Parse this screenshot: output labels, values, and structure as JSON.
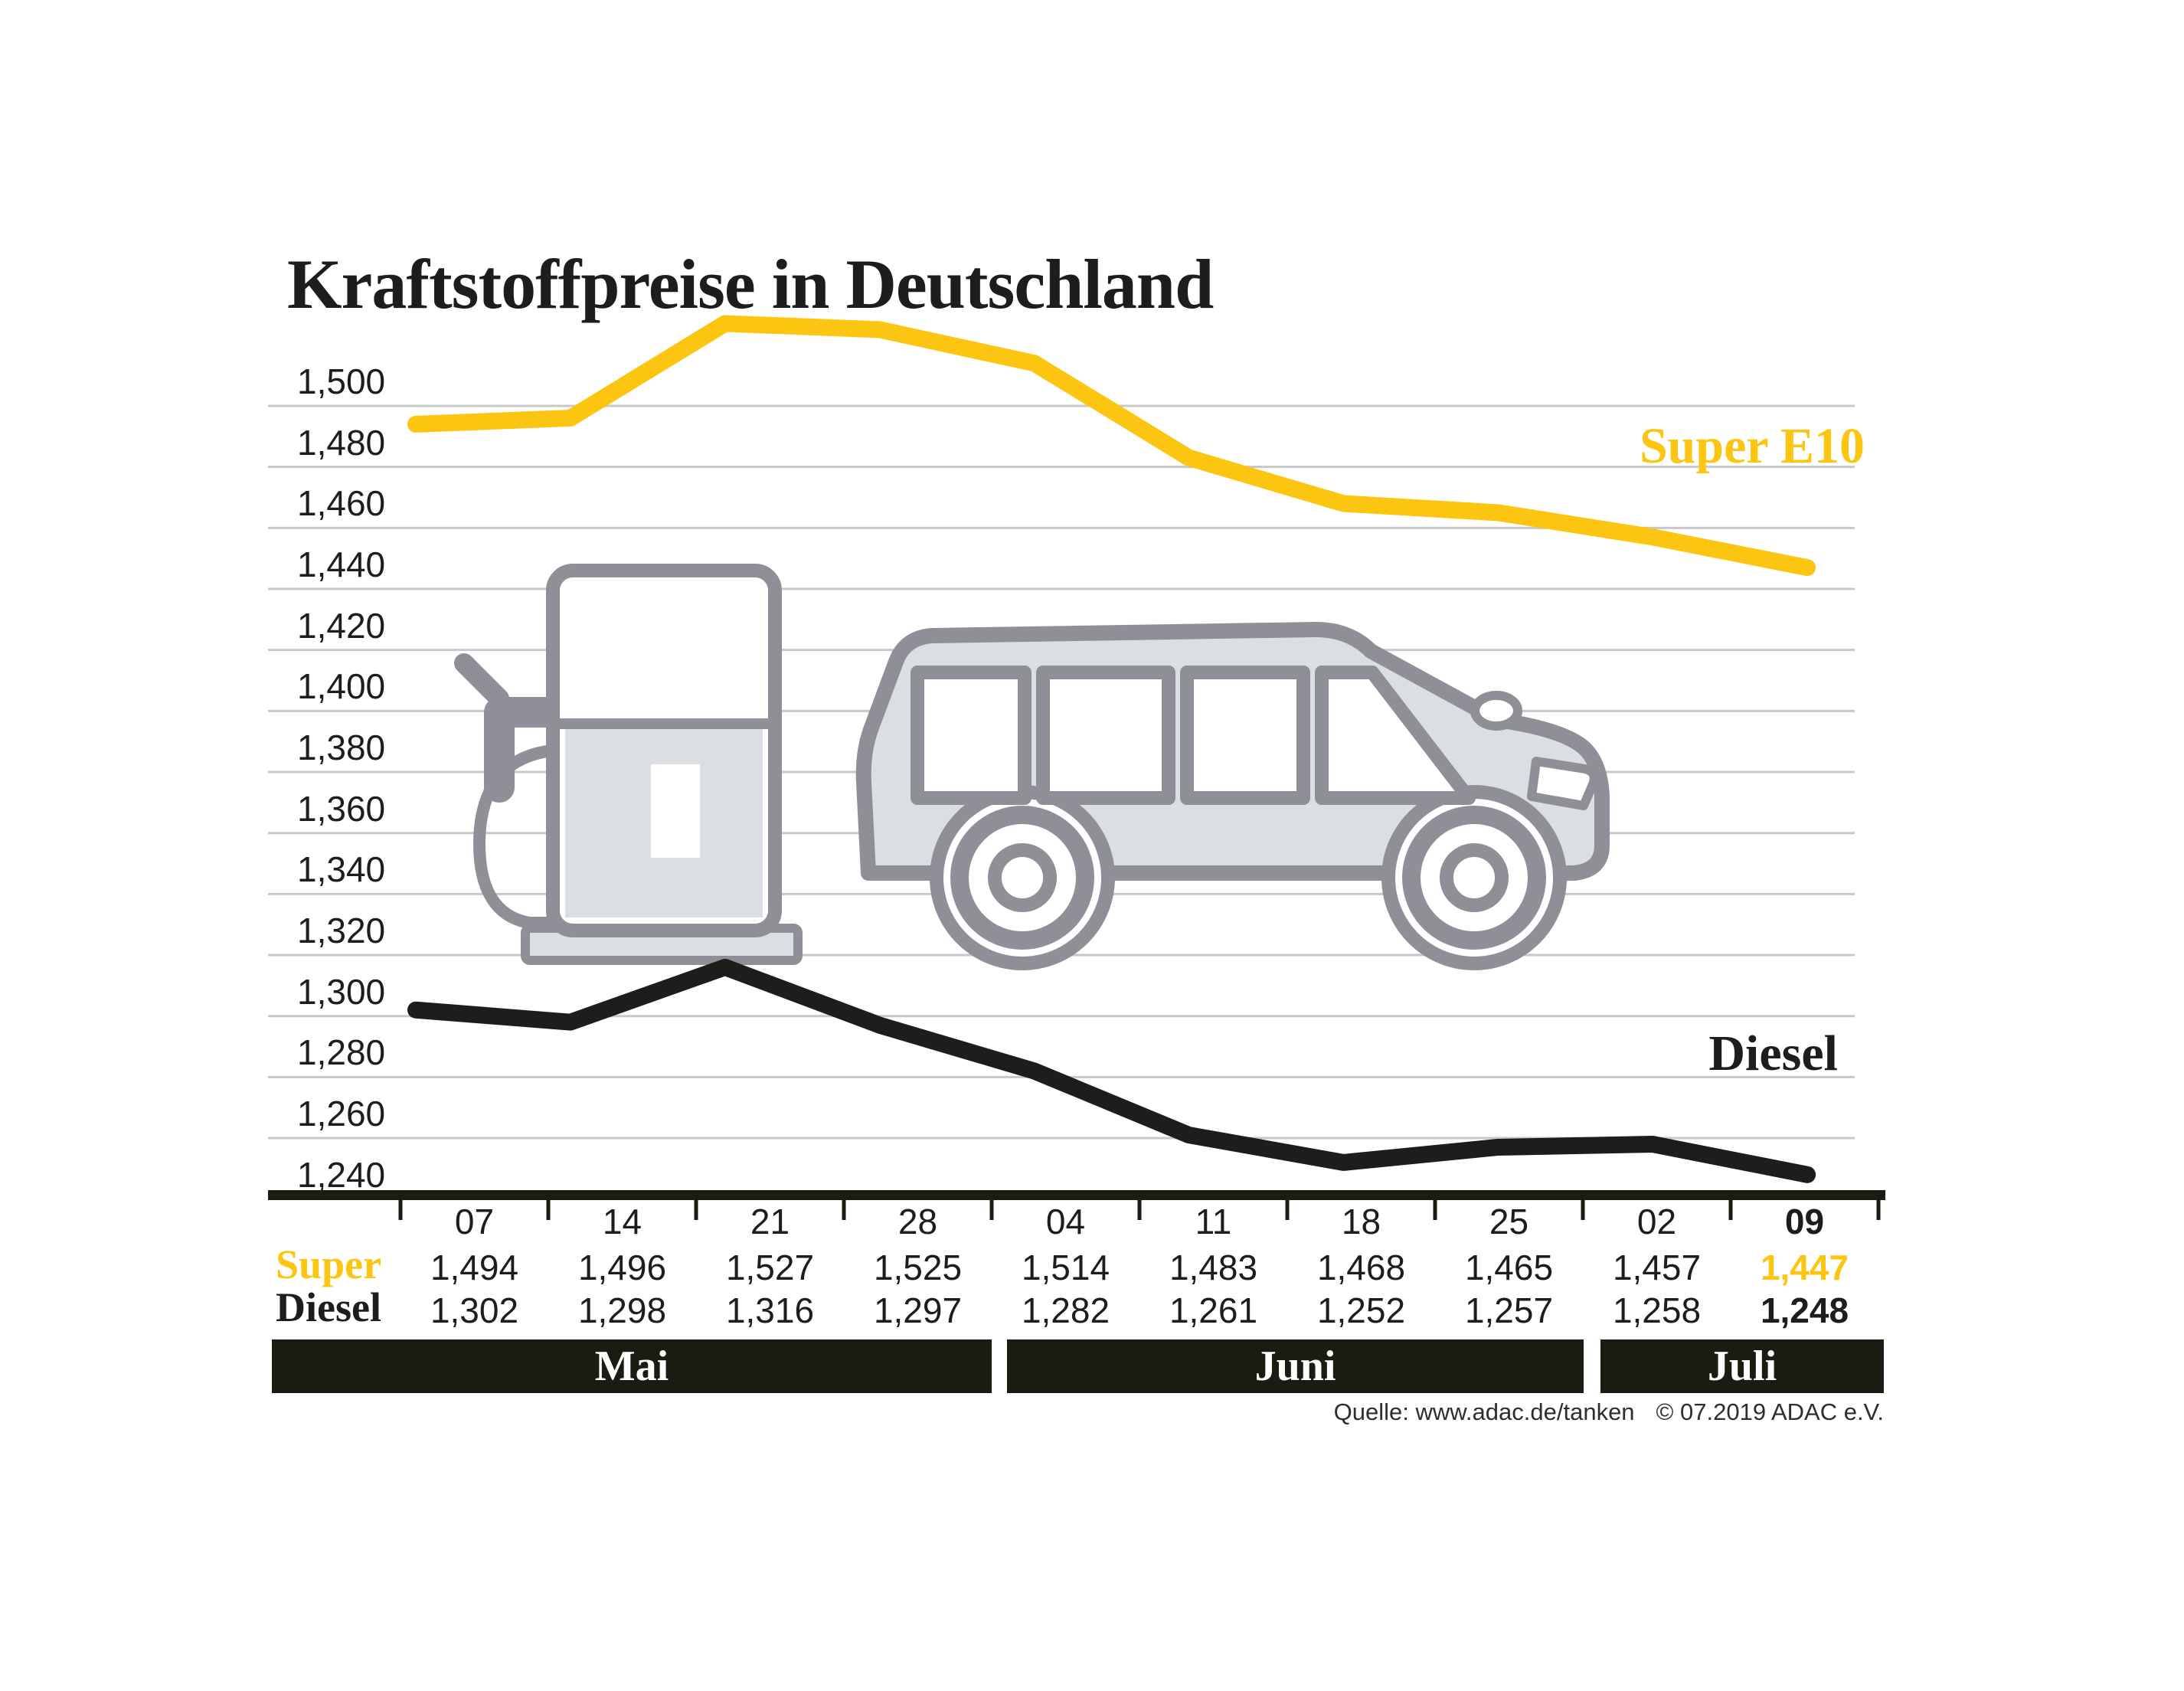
{
  "title": "Kraftstoffpreise in Deutschland",
  "chart_data": {
    "type": "line",
    "title": "Kraftstoffpreise in Deutschland",
    "x_labels": [
      "07",
      "14",
      "21",
      "28",
      "04",
      "11",
      "18",
      "25",
      "02",
      "09"
    ],
    "months": [
      {
        "label": "Mai",
        "span": [
          0,
          4
        ]
      },
      {
        "label": "Juni",
        "span": [
          4,
          8
        ]
      },
      {
        "label": "Juli",
        "span": [
          8,
          10
        ]
      }
    ],
    "y_ticks": [
      {
        "value": 1500,
        "label": "1,500"
      },
      {
        "value": 1480,
        "label": "1,480"
      },
      {
        "value": 1460,
        "label": "1,460"
      },
      {
        "value": 1440,
        "label": "1,440"
      },
      {
        "value": 1420,
        "label": "1,420"
      },
      {
        "value": 1400,
        "label": "1,400"
      },
      {
        "value": 1380,
        "label": "1,380"
      },
      {
        "value": 1360,
        "label": "1,360"
      },
      {
        "value": 1340,
        "label": "1,340"
      },
      {
        "value": 1320,
        "label": "1,320"
      },
      {
        "value": 1300,
        "label": "1,300"
      },
      {
        "value": 1280,
        "label": "1,280"
      },
      {
        "value": 1260,
        "label": "1,260"
      },
      {
        "value": 1240,
        "label": "1,240"
      }
    ],
    "ylim": [
      1240,
      1500
    ],
    "grid": true,
    "legend_position": "inline-right",
    "series": [
      {
        "name": "Super E10",
        "color": "#FBC512",
        "values": [
          1494,
          1496,
          1527,
          1525,
          1514,
          1483,
          1468,
          1465,
          1457,
          1447
        ]
      },
      {
        "name": "Diesel",
        "color": "#1d1d1b",
        "values": [
          1302,
          1298,
          1316,
          1297,
          1282,
          1261,
          1252,
          1257,
          1258,
          1248
        ]
      }
    ]
  },
  "table": {
    "row_labels": {
      "super": "Super",
      "diesel": "Diesel"
    },
    "super_values": [
      "1,494",
      "1,496",
      "1,527",
      "1,525",
      "1,514",
      "1,483",
      "1,468",
      "1,465",
      "1,457",
      "1,447"
    ],
    "diesel_values": [
      "1,302",
      "1,298",
      "1,316",
      "1,297",
      "1,282",
      "1,261",
      "1,252",
      "1,257",
      "1,258",
      "1,248"
    ]
  },
  "labels": {
    "series_super": "Super E10",
    "series_diesel": "Diesel"
  },
  "source": {
    "quelle": "Quelle: www.adac.de/tanken",
    "copyright": "© 07.2019  ADAC e.V."
  },
  "colors": {
    "accent_yellow": "#FBC512",
    "ink": "#1d1d1b",
    "band_background": "#1b1b12",
    "gridline": "#c8c8c8",
    "icon_stroke": "#8f8f97",
    "icon_fill": "#dbdee2"
  },
  "icons": [
    "fuel-pump-icon",
    "car-icon"
  ]
}
